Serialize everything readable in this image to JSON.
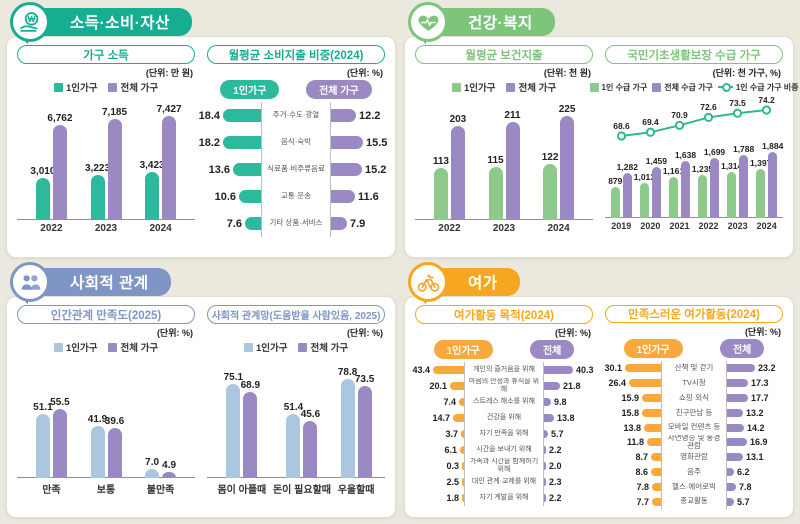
{
  "page": {
    "background": "#ebe9dd"
  },
  "sections": [
    {
      "title": "소득·소비·자산",
      "accent": "#16ad92",
      "accent_dark": "#0d8370",
      "icon": "won-hand-icon",
      "panels": [
        {
          "title": "가구 소득",
          "unit": "(단위: 만 원)",
          "legend": [
            {
              "label": "1인가구",
              "color": "#2cb99c"
            },
            {
              "label": "전체 가구",
              "color": "#9b89c4"
            }
          ],
          "chart": 0
        },
        {
          "title": "월평균 소비지출 비중(2024)",
          "unit": "(단위: %)",
          "badges": [
            {
              "label": "1인가구",
              "color": "#2cb99c"
            },
            {
              "label": "전체 가구",
              "color": "#9b89c4"
            }
          ],
          "chart": 1
        }
      ]
    },
    {
      "title": "건강·복지",
      "accent": "#7cc57b",
      "accent_dark": "#579a57",
      "icon": "heart-pulse-icon",
      "panels": [
        {
          "title": "월평균 보건지출",
          "unit": "(단위: 천 원)",
          "legend": [
            {
              "label": "1인가구",
              "color": "#8cc98b"
            },
            {
              "label": "전체 가구",
              "color": "#9b89c4"
            }
          ],
          "chart": 2
        },
        {
          "title": "국민기초생활보장 수급 가구",
          "unit": "(단위: 천 가구, %)",
          "legend": [
            {
              "label": "1인 수급 가구",
              "color": "#8cc98b"
            },
            {
              "label": "전체 수급 가구",
              "color": "#9b89c4"
            },
            {
              "label": "1인 수급 가구 비중",
              "color": "#2fb793",
              "marker": "line"
            }
          ],
          "chart": 3
        }
      ]
    },
    {
      "title": "사회적 관계",
      "accent": "#7e95c5",
      "accent_dark": "#5a72a5",
      "icon": "people-icon",
      "panels": [
        {
          "title": "인간관계 만족도(2025)",
          "unit": "(단위: %)",
          "legend": [
            {
              "label": "1인가구",
              "color": "#abc7e0"
            },
            {
              "label": "전체 가구",
              "color": "#9b89c4"
            }
          ],
          "chart": 4
        },
        {
          "title": "사회적 관계망(도움받을 사람있음, 2025)",
          "unit": "(단위: %)",
          "legend": [
            {
              "label": "1인가구",
              "color": "#abc7e0"
            },
            {
              "label": "전체 가구",
              "color": "#9b89c4"
            }
          ],
          "chart": 5
        }
      ]
    },
    {
      "title": "여가",
      "accent": "#f6a71f",
      "accent_dark": "#cc8317",
      "icon": "bicycle-icon",
      "panels": [
        {
          "title": "여가활동 목적(2024)",
          "unit": "(단위: %)",
          "badges": [
            {
              "label": "1인가구",
              "color": "#f8a93e"
            },
            {
              "label": "전체",
              "color": "#9b89c4"
            }
          ],
          "chart": 6
        },
        {
          "title": "만족스러운 여가활동(2024)",
          "unit": "(단위: %)",
          "badges": [
            {
              "label": "1인가구",
              "color": "#f8a93e"
            },
            {
              "label": "전체",
              "color": "#9b89c4"
            }
          ],
          "chart": 7
        }
      ]
    }
  ],
  "chart_data": [
    {
      "type": "bar",
      "title": "가구 소득",
      "unit": "만 원",
      "legend_position": "top",
      "categories": [
        "2022",
        "2023",
        "2024"
      ],
      "series": [
        {
          "name": "1인가구",
          "color": "#2cb99c",
          "values": [
            3010,
            3223,
            3423
          ],
          "labels": [
            "3,010",
            "3,223",
            "3,423"
          ]
        },
        {
          "name": "전체 가구",
          "color": "#9b89c4",
          "values": [
            6762,
            7185,
            7427
          ],
          "labels": [
            "6,762",
            "7,185",
            "7,427"
          ]
        }
      ],
      "ymax": 7427,
      "grid": false
    },
    {
      "type": "bar",
      "subtype": "tornado",
      "title": "월평균 소비지출 비중(2024)",
      "unit": "%",
      "categories": [
        "주거·수도·광열",
        "음식·숙박",
        "식료품·비주류음료",
        "교통·운송",
        "기타 상품·서비스"
      ],
      "left": {
        "name": "1인가구",
        "color": "#2cb99c",
        "values": [
          18.4,
          18.2,
          13.6,
          10.6,
          7.6
        ],
        "labels": [
          "18.4",
          "18.2",
          "13.6",
          "10.6",
          "7.6"
        ]
      },
      "right": {
        "name": "전체 가구",
        "color": "#9b89c4",
        "values": [
          12.2,
          15.5,
          15.2,
          11.6,
          7.9
        ],
        "labels": [
          "12.2",
          "15.5",
          "15.2",
          "11.6",
          "7.9"
        ]
      },
      "xmax": 18.4
    },
    {
      "type": "bar",
      "title": "월평균 보건지출",
      "unit": "천 원",
      "categories": [
        "2022",
        "2023",
        "2024"
      ],
      "series": [
        {
          "name": "1인가구",
          "color": "#8cc98b",
          "values": [
            113,
            115,
            122
          ],
          "labels": [
            "113",
            "115",
            "122"
          ]
        },
        {
          "name": "전체 가구",
          "color": "#9b89c4",
          "values": [
            203,
            211,
            225
          ],
          "labels": [
            "203",
            "211",
            "225"
          ]
        }
      ],
      "ymax": 225,
      "grid": false
    },
    {
      "type": "bar",
      "subtype": "bar+line",
      "title": "국민기초생활보장 수급 가구",
      "unit": "천 가구, %",
      "categories": [
        "2019",
        "2020",
        "2021",
        "2022",
        "2023",
        "2024"
      ],
      "series": [
        {
          "name": "1인 수급 가구",
          "color": "#8cc98b",
          "values": [
            879,
            1013,
            1161,
            1235,
            1314,
            1397
          ],
          "labels": [
            "879",
            "1,013",
            "1,161",
            "1,235",
            "1,314",
            "1,397"
          ]
        },
        {
          "name": "전체 수급 가구",
          "color": "#9b89c4",
          "values": [
            1282,
            1459,
            1638,
            1699,
            1788,
            1884
          ],
          "labels": [
            "1,282",
            "1,459",
            "1,638",
            "1,699",
            "1,788",
            "1,884"
          ]
        }
      ],
      "line": {
        "name": "1인 수급 가구 비중",
        "color": "#2fb793",
        "values": [
          68.6,
          69.4,
          70.9,
          72.6,
          73.5,
          74.2
        ],
        "labels": [
          "68.6",
          "69.4",
          "70.9",
          "72.6",
          "73.5",
          "74.2"
        ]
      },
      "ymax": 1884,
      "grid": false
    },
    {
      "type": "bar",
      "title": "인간관계 만족도(2025)",
      "unit": "%",
      "categories": [
        "만족",
        "보통",
        "불만족"
      ],
      "series": [
        {
          "name": "1인가구",
          "color": "#abc7e0",
          "values": [
            51.1,
            41.9,
            7.0
          ],
          "labels": [
            "51.1",
            "41.9",
            "7.0"
          ]
        },
        {
          "name": "전체 가구",
          "color": "#9b89c4",
          "values": [
            55.5,
            39.6,
            4.9
          ],
          "labels": [
            "55.5",
            "39.6",
            "4.9"
          ]
        }
      ],
      "ymax": 80,
      "grid": false
    },
    {
      "type": "bar",
      "title": "사회적 관계망(도움받을 사람있음, 2025)",
      "unit": "%",
      "categories": [
        "몸이 아플때",
        "돈이 필요할때",
        "우울할때"
      ],
      "series": [
        {
          "name": "1인가구",
          "color": "#abc7e0",
          "values": [
            75.1,
            51.4,
            78.8
          ],
          "labels": [
            "75.1",
            "51.4",
            "78.8"
          ]
        },
        {
          "name": "전체 가구",
          "color": "#9b89c4",
          "values": [
            68.9,
            45.6,
            73.5
          ],
          "labels": [
            "68.9",
            "45.6",
            "73.5"
          ]
        }
      ],
      "ymax": 80,
      "grid": false
    },
    {
      "type": "bar",
      "subtype": "tornado",
      "title": "여가활동 목적(2024)",
      "unit": "%",
      "categories": [
        "개인의 즐거움을 위해",
        "마음의 안정과 휴식을 위해",
        "스트레스 해소를 위해",
        "건강을 위해",
        "자기 만족을 위해",
        "시간을 보내기 위해",
        "가족과 시간을 함께하기 위해",
        "대인 관계·교제를 위해",
        "자기 계발을 위해"
      ],
      "left": {
        "name": "1인가구",
        "color": "#f8a93e",
        "values": [
          43.4,
          20.1,
          7.4,
          14.7,
          3.7,
          6.1,
          0.3,
          2.5,
          1.8
        ],
        "labels": [
          "43.4",
          "20.1",
          "7.4",
          "14.7",
          "3.7",
          "6.1",
          "0.3",
          "2.5",
          "1.8"
        ]
      },
      "right": {
        "name": "전체",
        "color": "#9b89c4",
        "values": [
          40.3,
          21.8,
          9.8,
          13.8,
          5.7,
          2.2,
          2.0,
          2.3,
          2.2
        ],
        "labels": [
          "40.3",
          "21.8",
          "9.8",
          "13.8",
          "5.7",
          "2.2",
          "2.0",
          "2.3",
          "2.2"
        ]
      },
      "xmax": 43.4
    },
    {
      "type": "bar",
      "subtype": "tornado",
      "title": "만족스러운 여가활동(2024)",
      "unit": "%",
      "categories": [
        "산책 및 걷기",
        "TV시청",
        "쇼핑·외식",
        "친구만남 등",
        "모바일 컨텐츠 등",
        "자연명승 및 풍경 관람",
        "영화관람",
        "음주",
        "헬스·에어로빅",
        "종교활동"
      ],
      "left": {
        "name": "1인가구",
        "color": "#f8a93e",
        "values": [
          30.1,
          26.4,
          15.9,
          15.8,
          13.8,
          11.8,
          8.7,
          8.6,
          7.8,
          7.7
        ],
        "labels": [
          "30.1",
          "26.4",
          "15.9",
          "15.8",
          "13.8",
          "11.8",
          "8.7",
          "8.6",
          "7.8",
          "7.7"
        ]
      },
      "right": {
        "name": "전체",
        "color": "#9b89c4",
        "values": [
          23.2,
          17.3,
          17.7,
          13.2,
          14.2,
          16.9,
          13.1,
          6.2,
          7.8,
          5.7
        ],
        "labels": [
          "23.2",
          "17.3",
          "17.7",
          "13.2",
          "14.2",
          "16.9",
          "13.1",
          "6.2",
          "7.8",
          "5.7"
        ]
      },
      "xmax": 30.1
    }
  ]
}
